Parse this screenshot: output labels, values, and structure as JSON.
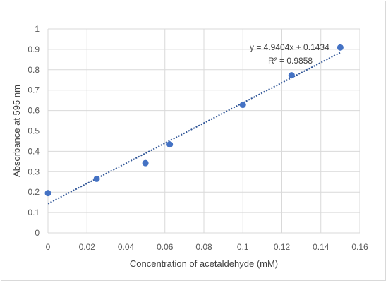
{
  "chart_data": {
    "type": "scatter",
    "xlabel": "Concentration of acetaldehyde (mM)",
    "ylabel": "Absorbance at 595 nm",
    "xlim": [
      0,
      0.16
    ],
    "ylim": [
      0,
      1
    ],
    "x_ticks": [
      "0",
      "0.02",
      "0.04",
      "0.06",
      "0.08",
      "0.1",
      "0.12",
      "0.14",
      "0.16"
    ],
    "y_ticks": [
      "0",
      "0.1",
      "0.2",
      "0.3",
      "0.4",
      "0.5",
      "0.6",
      "0.7",
      "0.8",
      "0.9",
      "1"
    ],
    "grid": true,
    "marker_color": "#4472c4",
    "trendline_color": "#2f5597",
    "points": [
      {
        "x": 0,
        "y": 0.195
      },
      {
        "x": 0.025,
        "y": 0.265
      },
      {
        "x": 0.05,
        "y": 0.342
      },
      {
        "x": 0.0625,
        "y": 0.434
      },
      {
        "x": 0.1,
        "y": 0.628
      },
      {
        "x": 0.125,
        "y": 0.773
      },
      {
        "x": 0.15,
        "y": 0.909
      }
    ],
    "trendline": {
      "slope": 4.9404,
      "intercept": 0.1434,
      "x_range": [
        0,
        0.15
      ],
      "equation": "y = 4.9404x + 0.1434",
      "r_squared": "R² = 0.9858"
    }
  }
}
